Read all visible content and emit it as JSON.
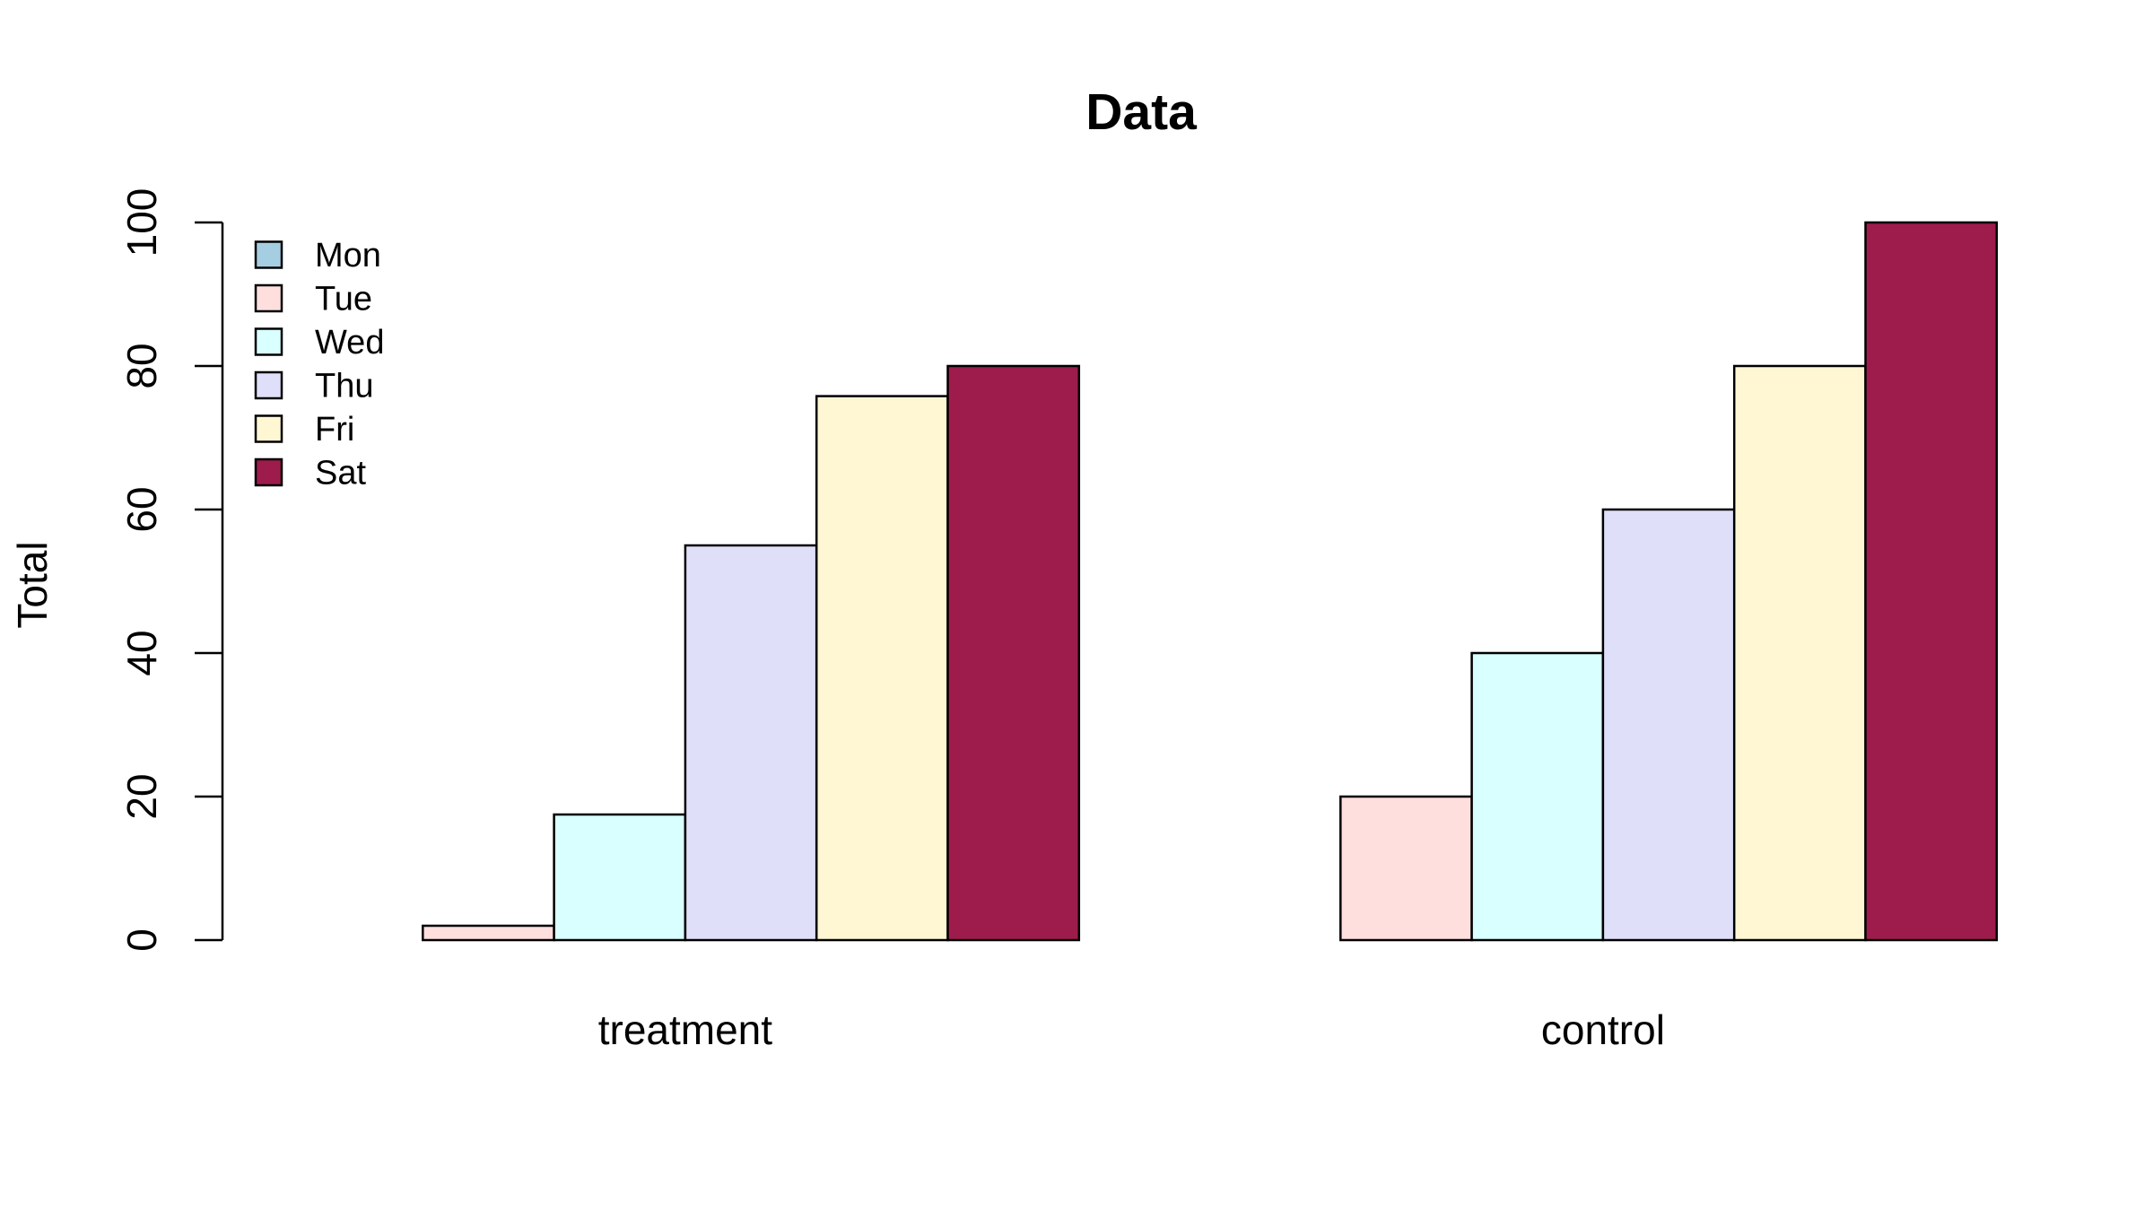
{
  "chart_data": {
    "type": "bar",
    "title": "Data",
    "xlabel": "",
    "ylabel": "Total",
    "ylim": [
      0,
      100
    ],
    "yticks": [
      0,
      20,
      40,
      60,
      80,
      100
    ],
    "categories": [
      "treatment",
      "control"
    ],
    "series": [
      {
        "name": "Mon",
        "color": "#A6CEE3",
        "values": [
          0,
          0
        ]
      },
      {
        "name": "Tue",
        "color": "#FFDEDE",
        "values": [
          2,
          20
        ]
      },
      {
        "name": "Wed",
        "color": "#D9FFFF",
        "values": [
          17.5,
          40
        ]
      },
      {
        "name": "Thu",
        "color": "#E0DFFA",
        "values": [
          55,
          60
        ]
      },
      {
        "name": "Fri",
        "color": "#FFF7D4",
        "values": [
          75.8,
          80
        ]
      },
      {
        "name": "Sat",
        "color": "#9E1C4C",
        "values": [
          80,
          100
        ]
      }
    ],
    "legend_position": "top-left",
    "grid": false
  }
}
